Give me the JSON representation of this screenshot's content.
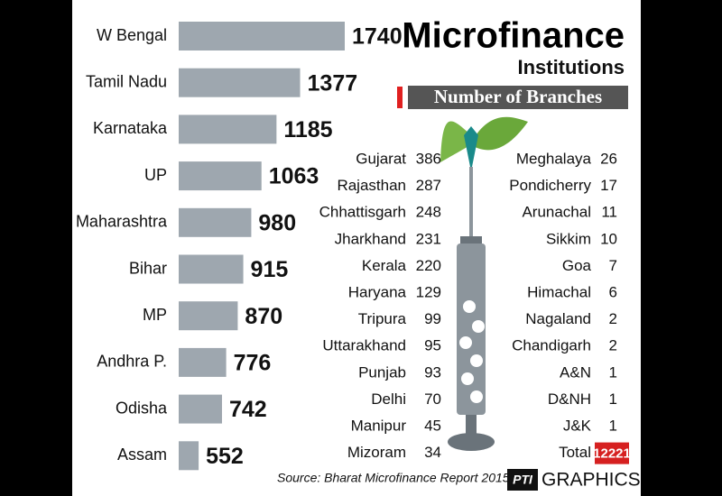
{
  "chart_data": {
    "type": "bar",
    "orientation": "horizontal",
    "title_lines": [
      "Microfinance",
      "Institutions"
    ],
    "subtitle": "Number of Branches",
    "categories": [
      "W Bengal",
      "Tamil Nadu",
      "Karnataka",
      "UP",
      "Maharashtra",
      "Bihar",
      "MP",
      "Andhra P.",
      "Odisha",
      "Assam"
    ],
    "values": [
      1740,
      1377,
      1185,
      1063,
      980,
      915,
      870,
      776,
      742,
      552
    ],
    "color": "#9ea7af",
    "xlim": [
      390,
      1740
    ],
    "source": "Source: Bharat Microfinance Report 2015",
    "credit": "GRAPHICS",
    "credit_logo": "PTI"
  },
  "other_states": {
    "left": [
      [
        "Gujarat",
        386
      ],
      [
        "Rajasthan",
        287
      ],
      [
        "Chhattisgarh",
        248
      ],
      [
        "Jharkhand",
        231
      ],
      [
        "Kerala",
        220
      ],
      [
        "Haryana",
        129
      ],
      [
        "Tripura",
        99
      ],
      [
        "Uttarakhand",
        95
      ],
      [
        "Punjab",
        93
      ],
      [
        "Delhi",
        70
      ],
      [
        "Manipur",
        45
      ],
      [
        "Mizoram",
        34
      ]
    ],
    "right": [
      [
        "Meghalaya",
        26
      ],
      [
        "Pondicherry",
        17
      ],
      [
        "Arunachal",
        11
      ],
      [
        "Sikkim",
        10
      ],
      [
        "Goa",
        7
      ],
      [
        "Himachal",
        6
      ],
      [
        "Nagaland",
        2
      ],
      [
        "Chandigarh",
        2
      ],
      [
        "A&N",
        1
      ],
      [
        "D&NH",
        1
      ],
      [
        "J&K",
        1
      ]
    ],
    "total": {
      "label": "Total",
      "value": 12221
    }
  }
}
